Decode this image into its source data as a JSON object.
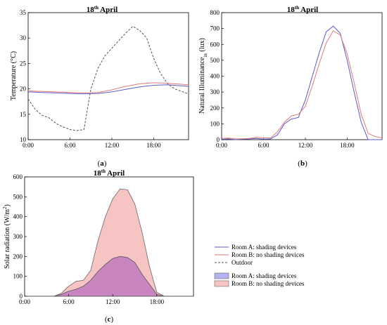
{
  "chart_data": [
    {
      "type": "line",
      "panel_label_prefix": "(",
      "panel_letter": "a",
      "panel_label_suffix": ")",
      "title_main": "18",
      "title_sup": "th",
      "title_rest": " April",
      "xlabel": "",
      "ylabel": "Temperature (°C)",
      "xlim": [
        0,
        23
      ],
      "ylim": [
        10,
        35
      ],
      "xticks": [
        0,
        6,
        12,
        18
      ],
      "xtick_labels": [
        "0:00",
        "6:00",
        "12:00",
        "18:00"
      ],
      "yticks": [
        10,
        15,
        20,
        25,
        30,
        35
      ],
      "ytick_labels": [
        "10",
        "15",
        "20",
        "25",
        "30",
        "35"
      ],
      "grid": false,
      "series": [
        {
          "id": "outdoor",
          "color": "#555555",
          "dashed": true,
          "x": [
            0,
            1,
            2,
            3,
            4,
            5,
            6,
            7,
            8,
            9,
            10,
            11,
            12,
            13,
            14,
            15,
            16,
            17,
            18,
            19,
            20,
            21,
            22,
            23
          ],
          "y": [
            18.0,
            16.0,
            14.8,
            14.3,
            13.2,
            12.5,
            12.0,
            11.8,
            12.0,
            20.0,
            24.0,
            26.5,
            28.0,
            29.5,
            31.0,
            32.3,
            31.5,
            30.0,
            26.0,
            23.0,
            21.0,
            20.0,
            19.5,
            19.0
          ]
        },
        {
          "id": "roomA",
          "color": "#5a5acd",
          "dashed": false,
          "x": [
            0,
            2,
            4,
            6,
            8,
            10,
            12,
            14,
            16,
            18,
            20,
            22,
            23
          ],
          "y": [
            19.4,
            19.3,
            19.2,
            19.1,
            19.0,
            19.1,
            19.4,
            19.9,
            20.4,
            20.7,
            20.8,
            20.6,
            20.5
          ]
        },
        {
          "id": "roomB",
          "color": "#e37a7a",
          "dashed": false,
          "x": [
            0,
            2,
            4,
            6,
            8,
            10,
            12,
            14,
            16,
            18,
            20,
            22,
            23
          ],
          "y": [
            19.6,
            19.5,
            19.4,
            19.3,
            19.2,
            19.3,
            19.8,
            20.5,
            21.0,
            21.2,
            21.1,
            20.9,
            20.8
          ]
        }
      ]
    },
    {
      "type": "line",
      "panel_label_prefix": "(",
      "panel_letter": "b",
      "panel_label_suffix": ")",
      "title_main": "18",
      "title_sup": "th",
      "title_rest": " April",
      "xlabel": "",
      "ylabel_main": "Natural Illuminance",
      "ylabel_sub": "in",
      "ylabel_rest": " (lux)",
      "xlim": [
        0,
        23
      ],
      "ylim": [
        0,
        800
      ],
      "xticks": [
        0,
        6,
        12,
        18
      ],
      "xtick_labels": [
        "0:00",
        "6:00",
        "12:00",
        "18:00"
      ],
      "yticks": [
        0,
        100,
        200,
        300,
        400,
        500,
        600,
        700,
        800
      ],
      "ytick_labels": [
        "0",
        "100",
        "200",
        "300",
        "400",
        "500",
        "600",
        "700",
        "800"
      ],
      "grid": false,
      "series": [
        {
          "id": "roomA",
          "color": "#5a5acd",
          "dashed": false,
          "x": [
            0,
            1,
            2,
            3,
            4,
            5,
            6,
            7,
            8,
            9,
            10,
            11,
            12,
            13,
            14,
            15,
            16,
            17,
            18,
            19,
            20,
            21,
            22,
            23
          ],
          "y": [
            2,
            5,
            0,
            3,
            5,
            8,
            3,
            5,
            30,
            100,
            130,
            140,
            250,
            400,
            550,
            680,
            715,
            670,
            500,
            300,
            110,
            0,
            0,
            0
          ]
        },
        {
          "id": "roomB",
          "color": "#e37a7a",
          "dashed": false,
          "x": [
            0,
            1,
            2,
            3,
            4,
            5,
            6,
            7,
            8,
            9,
            10,
            11,
            12,
            13,
            14,
            15,
            16,
            17,
            18,
            19,
            20,
            21,
            22,
            23
          ],
          "y": [
            8,
            10,
            5,
            6,
            8,
            15,
            12,
            10,
            50,
            110,
            150,
            160,
            210,
            340,
            480,
            610,
            685,
            660,
            540,
            360,
            160,
            40,
            20,
            12
          ]
        }
      ]
    },
    {
      "type": "area",
      "panel_label_prefix": "(",
      "panel_letter": "c",
      "panel_label_suffix": ")",
      "title_main": "18",
      "title_sup": "th",
      "title_rest": " April",
      "xlabel": "",
      "ylabel_main": "Solar radiation (W/m",
      "ylabel_sup": "2",
      "ylabel_rest": ")",
      "xlim": [
        0,
        23
      ],
      "ylim": [
        0,
        600
      ],
      "xticks": [
        0,
        6,
        12,
        18
      ],
      "xtick_labels": [
        "0:00",
        "6:00",
        "12:00",
        "18:00"
      ],
      "yticks": [
        0,
        100,
        200,
        300,
        400,
        500,
        600
      ],
      "ytick_labels": [
        "0",
        "100",
        "200",
        "300",
        "400",
        "500",
        "600"
      ],
      "grid": false,
      "series": [
        {
          "id": "roomB",
          "fill": "#f7c4c4",
          "stroke": "#666666",
          "x": [
            0,
            1,
            2,
            3,
            4,
            5,
            6,
            7,
            8,
            9,
            10,
            11,
            12,
            13,
            14,
            15,
            16,
            17,
            18,
            19,
            20,
            21,
            22,
            23
          ],
          "y": [
            0,
            0,
            0,
            0,
            0,
            15,
            50,
            75,
            80,
            130,
            280,
            400,
            490,
            540,
            535,
            465,
            320,
            150,
            20,
            0,
            0,
            0,
            0,
            0
          ]
        },
        {
          "id": "roomA",
          "fill": "#c07ac0",
          "stroke": "#555555",
          "x": [
            0,
            1,
            2,
            3,
            4,
            5,
            6,
            7,
            8,
            9,
            10,
            11,
            12,
            13,
            14,
            15,
            16,
            17,
            18,
            19,
            20,
            21,
            22,
            23
          ],
          "y": [
            0,
            0,
            0,
            0,
            0,
            10,
            25,
            35,
            50,
            80,
            125,
            160,
            190,
            200,
            195,
            170,
            110,
            60,
            10,
            0,
            0,
            0,
            0,
            0
          ]
        }
      ]
    }
  ],
  "legend": {
    "placement": "right of panel c",
    "items": [
      {
        "kind": "line",
        "color": "#5a5acd",
        "dashed": false,
        "label": "Room A: shading devices"
      },
      {
        "kind": "line",
        "color": "#e37a7a",
        "dashed": false,
        "label": "Room B: no shading devices"
      },
      {
        "kind": "line",
        "color": "#555555",
        "dashed": true,
        "label": "Outdoor"
      },
      {
        "kind": "patch",
        "color": "#b3b3ef",
        "label": "Room A: shading devices"
      },
      {
        "kind": "patch",
        "color": "#f7c4c4",
        "label": "Room B: no shading devices"
      }
    ]
  }
}
